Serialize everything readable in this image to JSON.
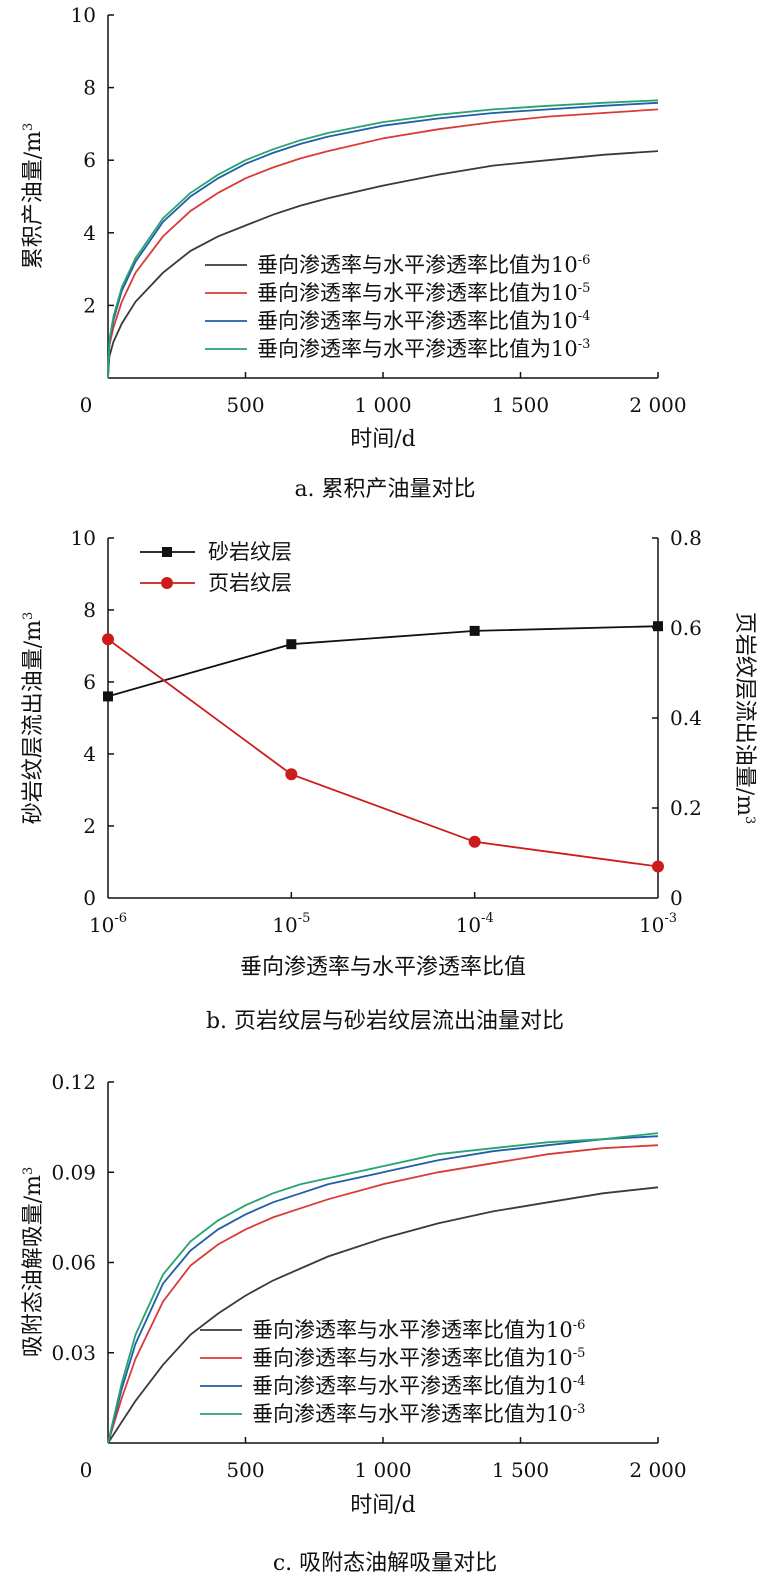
{
  "colors": {
    "e6": "#3a3a3a",
    "e5": "#d93a3a",
    "e4": "#1f5ea8",
    "e3": "#27a36e",
    "sand": "#111111",
    "shale": "#cc1b1b"
  },
  "chart_data": [
    {
      "type": "line",
      "caption": "a. 累积产油量对比",
      "xlabel": "时间/d",
      "ylabel": "累积产油量/m",
      "ylabel_sup": "3",
      "xlim": [
        0,
        2000
      ],
      "ylim": [
        0,
        10
      ],
      "xticks": [
        "0",
        "500",
        "1 000",
        "1 500",
        "2 000"
      ],
      "yticks": [
        "2",
        "4",
        "6",
        "8",
        "10"
      ],
      "legend_position": "center-right",
      "series": [
        {
          "name": "垂向渗透率与水平渗透率比值为10",
          "sup": "-6",
          "color": "#3a3a3a",
          "x": [
            0,
            5,
            20,
            50,
            100,
            200,
            300,
            400,
            500,
            600,
            700,
            800,
            1000,
            1200,
            1400,
            1600,
            1800,
            2000
          ],
          "y": [
            0,
            0.6,
            1.0,
            1.5,
            2.1,
            2.9,
            3.5,
            3.9,
            4.2,
            4.5,
            4.75,
            4.95,
            5.3,
            5.6,
            5.85,
            6.0,
            6.15,
            6.25
          ]
        },
        {
          "name": "垂向渗透率与水平渗透率比值为10",
          "sup": "-5",
          "color": "#d93a3a",
          "x": [
            0,
            5,
            20,
            50,
            100,
            200,
            300,
            400,
            500,
            600,
            700,
            800,
            1000,
            1200,
            1400,
            1600,
            1800,
            2000
          ],
          "y": [
            0,
            0.9,
            1.4,
            2.1,
            2.9,
            3.9,
            4.6,
            5.1,
            5.5,
            5.8,
            6.05,
            6.25,
            6.6,
            6.85,
            7.05,
            7.2,
            7.3,
            7.4
          ]
        },
        {
          "name": "垂向渗透率与水平渗透率比值为10",
          "sup": "-4",
          "color": "#1f5ea8",
          "x": [
            0,
            5,
            20,
            50,
            100,
            200,
            300,
            400,
            500,
            600,
            700,
            800,
            1000,
            1200,
            1400,
            1600,
            1800,
            2000
          ],
          "y": [
            0,
            1.0,
            1.6,
            2.4,
            3.2,
            4.3,
            5.0,
            5.5,
            5.9,
            6.2,
            6.45,
            6.65,
            6.95,
            7.15,
            7.3,
            7.4,
            7.5,
            7.58
          ]
        },
        {
          "name": "垂向渗透率与水平渗透率比值为10",
          "sup": "-3",
          "color": "#27a36e",
          "x": [
            0,
            5,
            20,
            50,
            100,
            200,
            300,
            400,
            500,
            600,
            700,
            800,
            1000,
            1200,
            1400,
            1600,
            1800,
            2000
          ],
          "y": [
            0,
            1.05,
            1.7,
            2.5,
            3.3,
            4.4,
            5.1,
            5.6,
            6.0,
            6.3,
            6.55,
            6.75,
            7.05,
            7.25,
            7.4,
            7.5,
            7.58,
            7.65
          ]
        }
      ]
    },
    {
      "type": "line",
      "caption": "b. 页岩纹层与砂岩纹层流出油量对比",
      "xlabel": "垂向渗透率与水平渗透率比值",
      "ylabel": "砂岩纹层流出油量/m",
      "ylabel_sup": "3",
      "y2label": "页岩纹层流出油量/m",
      "y2label_sup": "3",
      "xscale": "log",
      "x": [
        1e-06,
        1e-05,
        0.0001,
        0.001
      ],
      "xtick_base": [
        "10",
        "10",
        "10",
        "10"
      ],
      "xtick_exp": [
        "-6",
        "-5",
        "-4",
        "-3"
      ],
      "ylim": [
        0,
        10
      ],
      "yticks": [
        "0",
        "2",
        "4",
        "6",
        "8",
        "10"
      ],
      "y2lim": [
        0,
        0.8
      ],
      "y2ticks": [
        "0",
        "0.2",
        "0.4",
        "0.6",
        "0.8"
      ],
      "legend_position": "top-left",
      "series": [
        {
          "name": "砂岩纹层",
          "axis": "left",
          "marker": "square",
          "color": "#111111",
          "values": [
            5.6,
            7.05,
            7.42,
            7.55
          ]
        },
        {
          "name": "页岩纹层",
          "axis": "right",
          "marker": "circle",
          "color": "#cc1b1b",
          "values": [
            0.575,
            0.275,
            0.125,
            0.07
          ]
        }
      ]
    },
    {
      "type": "line",
      "caption": "c. 吸附态油解吸量对比",
      "xlabel": "时间/d",
      "ylabel": "吸附态油解吸量/m",
      "ylabel_sup": "3",
      "xlim": [
        0,
        2000
      ],
      "ylim": [
        0,
        0.12
      ],
      "xticks": [
        "0",
        "500",
        "1 000",
        "1 500",
        "2 000"
      ],
      "yticks": [
        "0.03",
        "0.06",
        "0.09",
        "0.12"
      ],
      "legend_position": "center-right",
      "series": [
        {
          "name": "垂向渗透率与水平渗透率比值为10",
          "sup": "-6",
          "color": "#3a3a3a",
          "x": [
            0,
            50,
            100,
            200,
            300,
            400,
            500,
            600,
            700,
            800,
            1000,
            1200,
            1400,
            1600,
            1800,
            2000
          ],
          "y": [
            0,
            0.007,
            0.014,
            0.026,
            0.036,
            0.043,
            0.049,
            0.054,
            0.058,
            0.062,
            0.068,
            0.073,
            0.077,
            0.08,
            0.083,
            0.085
          ]
        },
        {
          "name": "垂向渗透率与水平渗透率比值为10",
          "sup": "-5",
          "color": "#d93a3a",
          "x": [
            0,
            50,
            100,
            200,
            300,
            400,
            500,
            600,
            700,
            800,
            1000,
            1200,
            1400,
            1600,
            1800,
            2000
          ],
          "y": [
            0,
            0.015,
            0.028,
            0.047,
            0.059,
            0.066,
            0.071,
            0.075,
            0.078,
            0.081,
            0.086,
            0.09,
            0.093,
            0.096,
            0.098,
            0.099
          ]
        },
        {
          "name": "垂向渗透率与水平渗透率比值为10",
          "sup": "-4",
          "color": "#1f5ea8",
          "x": [
            0,
            50,
            100,
            200,
            300,
            400,
            500,
            600,
            700,
            800,
            1000,
            1200,
            1400,
            1600,
            1800,
            2000
          ],
          "y": [
            0,
            0.018,
            0.033,
            0.053,
            0.064,
            0.071,
            0.076,
            0.08,
            0.083,
            0.086,
            0.09,
            0.094,
            0.097,
            0.099,
            0.101,
            0.102
          ]
        },
        {
          "name": "垂向渗透率与水平渗透率比值为10",
          "sup": "-3",
          "color": "#27a36e",
          "x": [
            0,
            50,
            100,
            200,
            300,
            400,
            500,
            600,
            700,
            800,
            1000,
            1200,
            1400,
            1600,
            1800,
            2000
          ],
          "y": [
            0,
            0.02,
            0.036,
            0.056,
            0.067,
            0.074,
            0.079,
            0.083,
            0.086,
            0.088,
            0.092,
            0.096,
            0.098,
            0.1,
            0.101,
            0.103
          ]
        }
      ]
    }
  ]
}
